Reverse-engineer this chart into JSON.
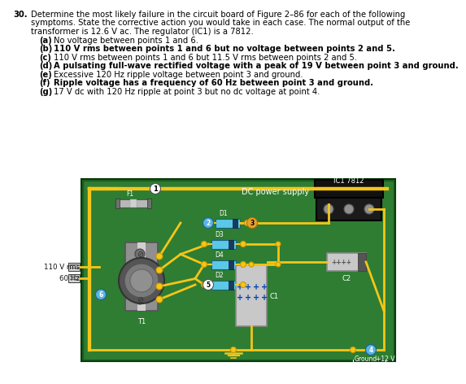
{
  "title_num": "30.",
  "title_line1": "Determine the most likely failure in the circuit board of Figure 2–86 for each of the following",
  "title_line2": "symptoms. State the corrective action you would take in each case. The normal output of the",
  "title_line3": "transformer is 12.6 V ac. The regulator (IC1) is a 7812.",
  "items": [
    [
      "(a)",
      " No voltage between points 1 and 6."
    ],
    [
      "(b)",
      " 110 V rms between points 1 and 6 but no voltage between points 2 and 5."
    ],
    [
      "(c)",
      " 110 V rms between points 1 and 6 but 11.5 V rms between points 2 and 5."
    ],
    [
      "(d)",
      " A pulsating full-wave rectified voltage with a peak of 19 V between point 3 and ground."
    ],
    [
      "(e)",
      " Excessive 120 Hz ripple voltage between point 3 and ground."
    ],
    [
      "(f)",
      " Ripple voltage has a frequency of 60 Hz between point 3 and ground."
    ],
    [
      "(g)",
      " 17 V dc with 120 Hz ripple at point 3 but no dc voltage at point 4."
    ]
  ],
  "bold_items": [
    "(b)",
    "(d)",
    "(f)"
  ],
  "wire_color": "#f5c518",
  "board_green": "#2e7d32",
  "board_shadow": "#1b5e20",
  "board_outer": "#4caf50",
  "text_color": "#000000",
  "white": "#ffffff",
  "diode_blue": "#5bc8e8",
  "diode_dark": "#1a3a5c",
  "ic_black": "#111111",
  "cap_gray": "#b0b0b0",
  "cap_dark": "#606060",
  "node_blue": "#5ab4e0",
  "node_orange": "#e8a030",
  "fuse_gray": "#909090",
  "tx_gray": "#808080",
  "yellow_dot": "#f5c518"
}
